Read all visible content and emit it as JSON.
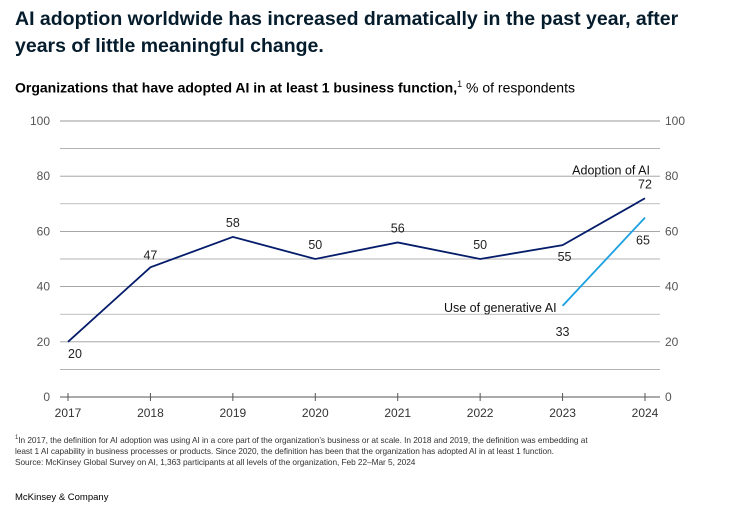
{
  "headline": "AI adoption worldwide has increased dramatically in the past year, after years of little meaningful change.",
  "subtitle": {
    "bold": "Organizations that have adopted AI in at least 1 business function,",
    "superscript": "1",
    "rest": " % of respondents"
  },
  "chart_data": {
    "type": "line",
    "categories": [
      "2017",
      "2018",
      "2019",
      "2020",
      "2021",
      "2022",
      "2023",
      "2024"
    ],
    "ylim": [
      0,
      100
    ],
    "yticks": [
      0,
      20,
      40,
      60,
      80,
      100
    ],
    "grid": true,
    "series": [
      {
        "name": "Adoption of AI",
        "color": "#051c6b",
        "x": [
          "2017",
          "2018",
          "2019",
          "2020",
          "2021",
          "2022",
          "2023",
          "2024"
        ],
        "values": [
          20,
          47,
          58,
          50,
          56,
          50,
          55,
          72
        ]
      },
      {
        "name": "Use of generative AI",
        "color": "#1ba0e2",
        "x": [
          "2023",
          "2024"
        ],
        "values": [
          33,
          65
        ]
      }
    ]
  },
  "footnote": {
    "marker": "1",
    "line1": "In 2017, the definition for AI adoption was using AI in a core part of the organization’s business or at scale. In 2018 and 2019, the definition was embedding at",
    "line2": "least 1 AI capability in business processes or products. Since 2020, the definition has been that the organization has adopted AI in at least 1 function.",
    "source": "Source: McKinsey Global Survey on AI, 1,363 participants at all levels of the organization, Feb 22–Mar 5, 2024"
  },
  "brand": "McKinsey & Company"
}
